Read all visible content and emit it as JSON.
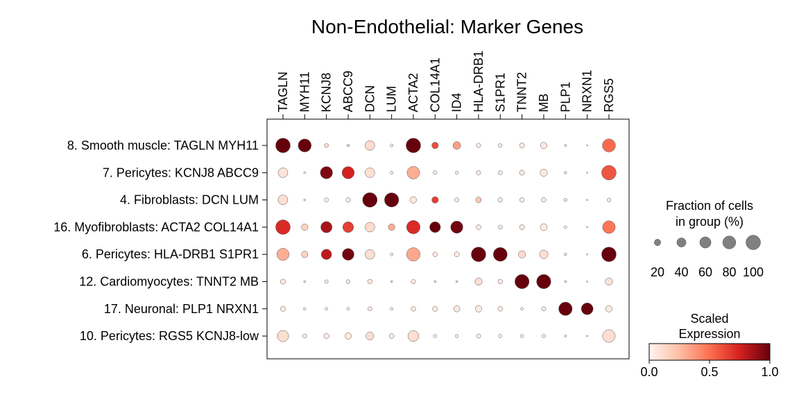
{
  "chart_data": {
    "type": "dotplot",
    "title": "Non-Endothelial: Marker Genes",
    "genes": [
      "TAGLN",
      "MYH11",
      "KCNJ8",
      "ABCC9",
      "DCN",
      "LUM",
      "ACTA2",
      "COL14A1",
      "ID4",
      "HLA-DRB1",
      "S1PR1",
      "TNNT2",
      "MB",
      "PLP1",
      "NRXN1",
      "RGS5"
    ],
    "groups": [
      "8. Smooth muscle: TAGLN MYH11",
      "7. Pericytes: KCNJ8 ABCC9",
      "4. Fibroblasts: DCN LUM",
      "16. Myofibroblasts: ACTA2 COL14A1",
      "6. Pericytes: HLA-DRB1 S1PR1",
      "12. Cardiomyocytes: TNNT2 MB",
      "17. Neuronal: PLP1 NRXN1",
      "10. Pericytes: RGS5 KCNJ8-low"
    ],
    "fraction_pct": [
      [
        100,
        80,
        8,
        3,
        45,
        4,
        100,
        20,
        28,
        9,
        7,
        12,
        20,
        2,
        1,
        80
      ],
      [
        45,
        2,
        70,
        70,
        45,
        4,
        75,
        7,
        5,
        9,
        8,
        12,
        25,
        3,
        1,
        100
      ],
      [
        45,
        2,
        8,
        10,
        100,
        95,
        20,
        20,
        8,
        15,
        10,
        10,
        10,
        5,
        1,
        7
      ],
      [
        100,
        20,
        60,
        55,
        45,
        20,
        85,
        55,
        70,
        11,
        8,
        12,
        23,
        4,
        1,
        75
      ],
      [
        70,
        20,
        50,
        65,
        45,
        4,
        85,
        10,
        12,
        100,
        90,
        25,
        35,
        3,
        1,
        100
      ],
      [
        12,
        2,
        6,
        7,
        10,
        2,
        9,
        2,
        2,
        25,
        10,
        95,
        95,
        2,
        1,
        25
      ],
      [
        12,
        3,
        4,
        4,
        8,
        4,
        10,
        12,
        18,
        20,
        11,
        4,
        9,
        85,
        65,
        20
      ],
      [
        60,
        8,
        13,
        20,
        30,
        11,
        55,
        5,
        5,
        9,
        6,
        5,
        6,
        2,
        1,
        75
      ]
    ],
    "scaled_expression": [
      [
        1.0,
        1.0,
        0.1,
        0.1,
        0.12,
        0.05,
        1.0,
        0.6,
        0.35,
        0.05,
        0.05,
        0.05,
        0.05,
        0.05,
        0.05,
        0.52
      ],
      [
        0.08,
        0.02,
        0.95,
        0.75,
        0.1,
        0.05,
        0.3,
        0.05,
        0.05,
        0.05,
        0.05,
        0.05,
        0.05,
        0.05,
        0.05,
        0.58
      ],
      [
        0.1,
        0.02,
        0.05,
        0.05,
        1.0,
        1.0,
        0.05,
        0.65,
        0.05,
        0.2,
        0.05,
        0.05,
        0.05,
        0.05,
        0.05,
        0.05
      ],
      [
        0.72,
        0.15,
        0.85,
        0.65,
        0.12,
        0.3,
        0.72,
        1.0,
        0.98,
        0.05,
        0.05,
        0.05,
        0.05,
        0.05,
        0.05,
        0.48
      ],
      [
        0.3,
        0.15,
        0.8,
        0.97,
        0.1,
        0.05,
        0.32,
        0.05,
        0.05,
        1.0,
        1.0,
        0.12,
        0.1,
        0.05,
        0.05,
        1.0
      ],
      [
        0.05,
        0.02,
        0.05,
        0.05,
        0.05,
        0.05,
        0.05,
        0.05,
        0.05,
        0.1,
        0.05,
        1.0,
        1.0,
        0.05,
        0.05,
        0.08
      ],
      [
        0.05,
        0.05,
        0.05,
        0.05,
        0.05,
        0.05,
        0.05,
        0.05,
        0.05,
        0.05,
        0.05,
        0.05,
        0.05,
        1.0,
        1.0,
        0.05
      ],
      [
        0.1,
        0.05,
        0.05,
        0.05,
        0.1,
        0.05,
        0.1,
        0.05,
        0.05,
        0.05,
        0.05,
        0.05,
        0.05,
        0.05,
        0.05,
        0.1
      ]
    ],
    "size_legend": {
      "title_line1": "Fraction of cells",
      "title_line2": "in group (%)",
      "values": [
        20,
        40,
        60,
        80,
        100
      ],
      "labels": [
        "20",
        "40",
        "60",
        "80",
        "100"
      ]
    },
    "color_legend": {
      "title_line1": "Scaled",
      "title_line2": "Expression",
      "ticks": [
        0.0,
        0.5,
        1.0
      ],
      "tick_labels": [
        "0.0",
        "0.5",
        "1.0"
      ],
      "colormap": [
        "#fff5f0",
        "#fdbea5",
        "#fc7050",
        "#d42020",
        "#67000d"
      ]
    }
  }
}
